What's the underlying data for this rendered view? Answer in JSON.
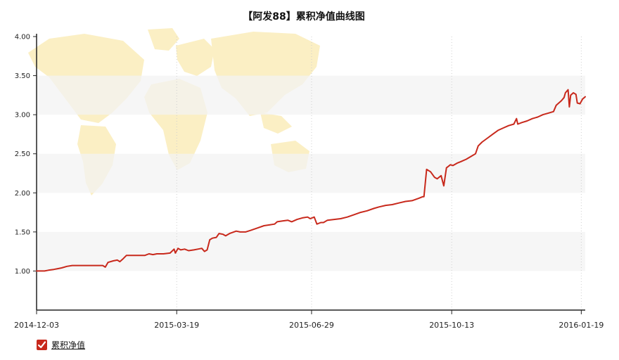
{
  "colors": {
    "line": "#c8291c",
    "band": "#f3f3f3",
    "axis": "#222222",
    "grid": "#cfcfcf",
    "map": "#fbefc4",
    "legend_box": "#c8291c"
  },
  "legend": {
    "label": "累积净值",
    "icon": "check-icon"
  },
  "chart_data": {
    "type": "line",
    "title": "【阿发88】累积净值曲线图",
    "xlabel": "",
    "ylabel": "",
    "ylim": [
      0.5,
      4.0
    ],
    "xlim": [
      "2014-12-03",
      "2016-01-22"
    ],
    "yticks": [
      1.0,
      1.5,
      2.0,
      2.5,
      3.0,
      3.5,
      4.0
    ],
    "ytick_labels": [
      "1.00",
      "1.50",
      "2.00",
      "2.50",
      "3.00",
      "3.50",
      "4.00"
    ],
    "xticks": [
      "2014-12-03",
      "2015-03-19",
      "2015-06-29",
      "2015-10-13",
      "2016-01-19"
    ],
    "grid": "vertical dotted lines at x ticks, alternating horizontal bands",
    "legend_position": "bottom-left",
    "series": [
      {
        "name": "累积净值",
        "points": [
          [
            "2014-12-03",
            1.0
          ],
          [
            "2014-12-09",
            1.0
          ],
          [
            "2014-12-12",
            1.01
          ],
          [
            "2014-12-16",
            1.02
          ],
          [
            "2014-12-19",
            1.03
          ],
          [
            "2014-12-22",
            1.04
          ],
          [
            "2014-12-26",
            1.06
          ],
          [
            "2014-12-30",
            1.07
          ],
          [
            "2015-01-08",
            1.07
          ],
          [
            "2015-01-15",
            1.07
          ],
          [
            "2015-01-22",
            1.07
          ],
          [
            "2015-01-24",
            1.05
          ],
          [
            "2015-01-26",
            1.11
          ],
          [
            "2015-01-30",
            1.13
          ],
          [
            "2015-02-02",
            1.14
          ],
          [
            "2015-02-04",
            1.12
          ],
          [
            "2015-02-06",
            1.15
          ],
          [
            "2015-02-09",
            1.2
          ],
          [
            "2015-02-13",
            1.2
          ],
          [
            "2015-02-18",
            1.2
          ],
          [
            "2015-02-23",
            1.2
          ],
          [
            "2015-02-26",
            1.22
          ],
          [
            "2015-03-01",
            1.21
          ],
          [
            "2015-03-04",
            1.22
          ],
          [
            "2015-03-09",
            1.22
          ],
          [
            "2015-03-14",
            1.23
          ],
          [
            "2015-03-17",
            1.28
          ],
          [
            "2015-03-18",
            1.23
          ],
          [
            "2015-03-20",
            1.29
          ],
          [
            "2015-03-22",
            1.27
          ],
          [
            "2015-03-25",
            1.28
          ],
          [
            "2015-03-28",
            1.26
          ],
          [
            "2015-04-01",
            1.27
          ],
          [
            "2015-04-04",
            1.28
          ],
          [
            "2015-04-07",
            1.29
          ],
          [
            "2015-04-09",
            1.25
          ],
          [
            "2015-04-11",
            1.27
          ],
          [
            "2015-04-13",
            1.4
          ],
          [
            "2015-04-15",
            1.42
          ],
          [
            "2015-04-18",
            1.43
          ],
          [
            "2015-04-20",
            1.48
          ],
          [
            "2015-04-23",
            1.47
          ],
          [
            "2015-04-25",
            1.45
          ],
          [
            "2015-04-28",
            1.48
          ],
          [
            "2015-05-03",
            1.51
          ],
          [
            "2015-05-06",
            1.5
          ],
          [
            "2015-05-10",
            1.5
          ],
          [
            "2015-05-14",
            1.52
          ],
          [
            "2015-05-19",
            1.55
          ],
          [
            "2015-05-24",
            1.58
          ],
          [
            "2015-05-28",
            1.59
          ],
          [
            "2015-06-01",
            1.6
          ],
          [
            "2015-06-03",
            1.63
          ],
          [
            "2015-06-07",
            1.64
          ],
          [
            "2015-06-11",
            1.65
          ],
          [
            "2015-06-14",
            1.63
          ],
          [
            "2015-06-18",
            1.66
          ],
          [
            "2015-06-22",
            1.68
          ],
          [
            "2015-06-26",
            1.69
          ],
          [
            "2015-06-28",
            1.67
          ],
          [
            "2015-07-01",
            1.69
          ],
          [
            "2015-07-03",
            1.6
          ],
          [
            "2015-07-06",
            1.62
          ],
          [
            "2015-07-08",
            1.62
          ],
          [
            "2015-07-11",
            1.65
          ],
          [
            "2015-07-16",
            1.66
          ],
          [
            "2015-07-21",
            1.67
          ],
          [
            "2015-07-26",
            1.69
          ],
          [
            "2015-07-31",
            1.72
          ],
          [
            "2015-08-05",
            1.75
          ],
          [
            "2015-08-10",
            1.77
          ],
          [
            "2015-08-15",
            1.8
          ],
          [
            "2015-08-19",
            1.82
          ],
          [
            "2015-08-24",
            1.84
          ],
          [
            "2015-08-29",
            1.85
          ],
          [
            "2015-09-03",
            1.87
          ],
          [
            "2015-09-08",
            1.89
          ],
          [
            "2015-09-13",
            1.9
          ],
          [
            "2015-09-18",
            1.93
          ],
          [
            "2015-09-21",
            1.95
          ],
          [
            "2015-09-22",
            1.95
          ],
          [
            "2015-09-24",
            2.3
          ],
          [
            "2015-09-27",
            2.27
          ],
          [
            "2015-09-30",
            2.2
          ],
          [
            "2015-10-02",
            2.18
          ],
          [
            "2015-10-05",
            2.22
          ],
          [
            "2015-10-07",
            2.09
          ],
          [
            "2015-10-09",
            2.32
          ],
          [
            "2015-10-12",
            2.36
          ],
          [
            "2015-10-14",
            2.35
          ],
          [
            "2015-10-17",
            2.38
          ],
          [
            "2015-10-20",
            2.4
          ],
          [
            "2015-10-24",
            2.43
          ],
          [
            "2015-10-28",
            2.47
          ],
          [
            "2015-10-31",
            2.5
          ],
          [
            "2015-11-02",
            2.6
          ],
          [
            "2015-11-05",
            2.65
          ],
          [
            "2015-11-09",
            2.7
          ],
          [
            "2015-11-13",
            2.75
          ],
          [
            "2015-11-17",
            2.8
          ],
          [
            "2015-11-21",
            2.83
          ],
          [
            "2015-11-25",
            2.86
          ],
          [
            "2015-11-29",
            2.88
          ],
          [
            "2015-12-01",
            2.95
          ],
          [
            "2015-12-02",
            2.88
          ],
          [
            "2015-12-05",
            2.9
          ],
          [
            "2015-12-09",
            2.92
          ],
          [
            "2015-12-13",
            2.95
          ],
          [
            "2015-12-17",
            2.97
          ],
          [
            "2015-12-21",
            3.0
          ],
          [
            "2015-12-25",
            3.02
          ],
          [
            "2015-12-29",
            3.04
          ],
          [
            "2015-12-31",
            3.12
          ],
          [
            "2016-01-02",
            3.15
          ],
          [
            "2016-01-04",
            3.18
          ],
          [
            "2016-01-06",
            3.22
          ],
          [
            "2016-01-07",
            3.28
          ],
          [
            "2016-01-09",
            3.32
          ],
          [
            "2016-01-10",
            3.1
          ],
          [
            "2016-01-11",
            3.25
          ],
          [
            "2016-01-13",
            3.28
          ],
          [
            "2016-01-15",
            3.26
          ],
          [
            "2016-01-16",
            3.15
          ],
          [
            "2016-01-18",
            3.14
          ],
          [
            "2016-01-20",
            3.2
          ],
          [
            "2016-01-22",
            3.23
          ]
        ]
      }
    ]
  }
}
